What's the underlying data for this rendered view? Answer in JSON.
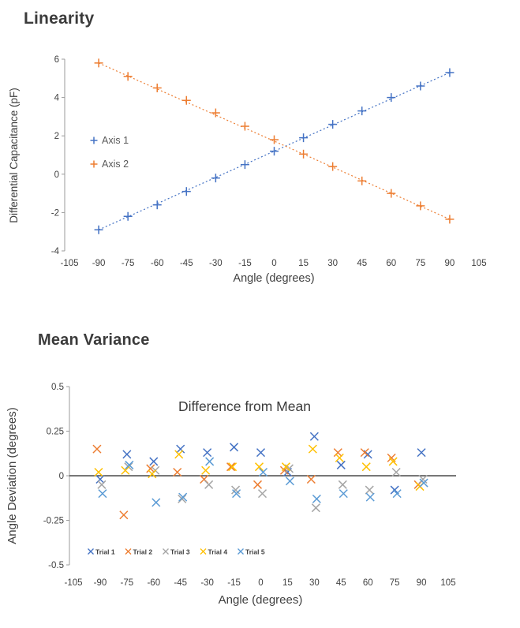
{
  "page": {
    "background": "#ffffff"
  },
  "colors": {
    "axis_line": "#9b9b9b",
    "tick_text": "#404040",
    "zero_line": "#262626",
    "legend_text": "#595959",
    "title_text": "#3b3b3b"
  },
  "chart_data": [
    {
      "type": "scatter",
      "title": "Linearity",
      "xlabel": "Angle (degrees)",
      "ylabel": "Differential Capacitance (pF)",
      "marker": "plus",
      "xlim": [
        -105,
        105
      ],
      "ylim": [
        -4,
        6
      ],
      "xticks": [
        -105,
        -90,
        -75,
        -60,
        -45,
        -30,
        -15,
        0,
        15,
        30,
        45,
        60,
        75,
        90,
        105
      ],
      "yticks": [
        6,
        4,
        2,
        0,
        -2,
        -4
      ],
      "grid": false,
      "legend_position": "inside-left",
      "x": [
        -90,
        -75,
        -60,
        -45,
        -30,
        -15,
        0,
        15,
        30,
        45,
        60,
        75,
        90
      ],
      "series": [
        {
          "name": "Axis 1",
          "color": "#4472C4",
          "trendline": "dotted",
          "values": [
            -2.9,
            -2.2,
            -1.6,
            -0.9,
            -0.2,
            0.5,
            1.2,
            1.9,
            2.6,
            3.3,
            4.0,
            4.6,
            5.3
          ]
        },
        {
          "name": "Axis 2",
          "color": "#ED7D31",
          "trendline": "dotted",
          "values": [
            5.8,
            5.1,
            4.5,
            3.85,
            3.2,
            2.5,
            1.8,
            1.05,
            0.4,
            -0.35,
            -1.0,
            -1.65,
            -2.35
          ]
        }
      ]
    },
    {
      "type": "scatter",
      "title": "Mean Variance",
      "inner_title": "Difference from Mean",
      "xlabel": "Angle (degrees)",
      "ylabel": "Angle Deviation (degrees)",
      "marker": "x",
      "xlim": [
        -105,
        105
      ],
      "ylim": [
        -0.5,
        0.5
      ],
      "xticks": [
        -105,
        -90,
        -75,
        -60,
        -45,
        -30,
        -15,
        0,
        15,
        30,
        45,
        60,
        75,
        90,
        105
      ],
      "yticks": [
        "0.5",
        "0.25",
        "0",
        "-0.25",
        "-0.5"
      ],
      "grid": false,
      "zero_line": true,
      "legend_position": "inside-bottom",
      "x": [
        -90,
        -75,
        -60,
        -45,
        -30,
        -15,
        0,
        15,
        30,
        45,
        60,
        75,
        90
      ],
      "series": [
        {
          "name": "Trial 1",
          "color": "#4472C4",
          "values": [
            -0.02,
            0.12,
            0.08,
            0.15,
            0.13,
            0.16,
            0.13,
            0.02,
            0.22,
            0.06,
            0.12,
            -0.08,
            0.13
          ]
        },
        {
          "name": "Trial 2",
          "color": "#ED7D31",
          "values": [
            0.15,
            -0.22,
            0.04,
            0.02,
            -0.02,
            0.05,
            -0.05,
            0.03,
            -0.02,
            0.13,
            0.13,
            0.1,
            -0.05
          ]
        },
        {
          "name": "Trial 3",
          "color": "#A5A5A5",
          "values": [
            -0.05,
            0.05,
            0.03,
            -0.13,
            -0.05,
            -0.08,
            -0.1,
            0.04,
            -0.18,
            -0.05,
            -0.08,
            0.02,
            -0.02
          ]
        },
        {
          "name": "Trial 4",
          "color": "#FFC000",
          "values": [
            0.02,
            0.03,
            0.01,
            0.12,
            0.03,
            0.05,
            0.05,
            0.05,
            0.15,
            0.1,
            0.05,
            0.08,
            -0.06
          ]
        },
        {
          "name": "Trial 5",
          "color": "#5B9BD5",
          "values": [
            -0.1,
            0.06,
            -0.15,
            -0.12,
            0.08,
            -0.1,
            0.02,
            -0.03,
            -0.13,
            -0.1,
            -0.12,
            -0.1,
            -0.04
          ]
        }
      ]
    }
  ]
}
